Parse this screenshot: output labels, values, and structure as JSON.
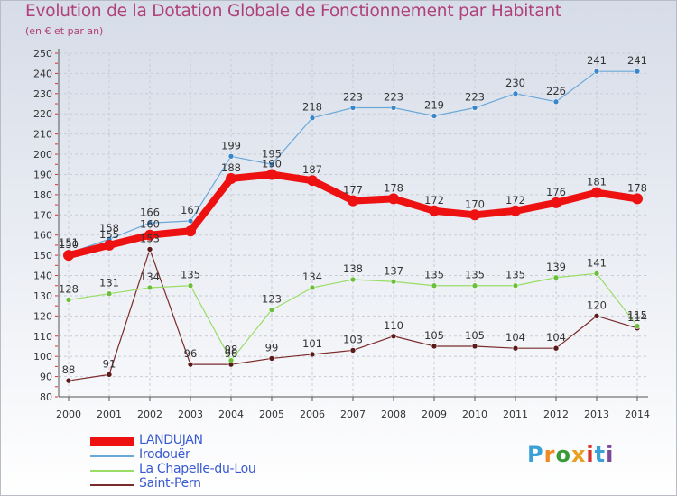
{
  "header": {
    "title": "Evolution de la Dotation Globale de Fonctionnement par Habitant",
    "subtitle": "(en € et par an)"
  },
  "brand": {
    "letters": [
      "P",
      "r",
      "o",
      "x",
      "i",
      "t",
      "i"
    ],
    "colors": [
      "#39a0d8",
      "#f08a24",
      "#3a9a3a",
      "#e8a020",
      "#d8302a",
      "#39a0d8",
      "#7a4a9a"
    ]
  },
  "chart_data": {
    "type": "line",
    "title": "Evolution de la Dotation Globale de Fonctionnement par Habitant",
    "subtitle": "(en € et par an)",
    "xlabel": "",
    "ylabel": "",
    "ylim": [
      80,
      250
    ],
    "ytick_step": 10,
    "x": [
      "2000",
      "2001",
      "2002",
      "2003",
      "2004",
      "2005",
      "2006",
      "2007",
      "2008",
      "2009",
      "2010",
      "2011",
      "2012",
      "2013",
      "2014"
    ],
    "legend_position": "bottom-left",
    "series": [
      {
        "name": "LANDUJAN",
        "color": "#ee1111",
        "label_color": "#333333",
        "line_width": 8,
        "marker_r": 6,
        "values": [
          150,
          155,
          160,
          162,
          188,
          190,
          187,
          177,
          178,
          172,
          170,
          172,
          176,
          181,
          178
        ],
        "labels": [
          "150",
          "155",
          "160",
          "",
          "188",
          "190",
          "187",
          "177",
          "178",
          "172",
          "170",
          "172",
          "176",
          "181",
          "178"
        ]
      },
      {
        "name": "Irodouër",
        "color": "#6aa8d8",
        "marker_color": "#3a86c8",
        "label_color": "#333333",
        "line_width": 1.2,
        "marker_r": 3,
        "values": [
          151,
          158,
          166,
          167,
          199,
          195,
          218,
          223,
          223,
          219,
          223,
          230,
          226,
          241,
          241
        ],
        "labels": [
          "151",
          "158",
          "166",
          "167",
          "199",
          "195",
          "218",
          "223",
          "223",
          "219",
          "223",
          "230",
          "226",
          "241",
          "241"
        ]
      },
      {
        "name": "La Chapelle-du-Lou",
        "color": "#99dd66",
        "marker_color": "#6cbf3c",
        "label_color": "#333333",
        "line_width": 1.2,
        "marker_r": 3,
        "values": [
          128,
          131,
          134,
          135,
          98,
          123,
          134,
          138,
          137,
          135,
          135,
          135,
          139,
          141,
          115
        ],
        "labels": [
          "128",
          "131",
          "134",
          "135",
          "98",
          "123",
          "134",
          "138",
          "137",
          "135",
          "135",
          "135",
          "139",
          "141",
          "115"
        ]
      },
      {
        "name": "Saint-Pern",
        "color": "#7a2a2a",
        "marker_color": "#5a1a1a",
        "label_color": "#333333",
        "line_width": 1.2,
        "marker_r": 3,
        "values": [
          88,
          91,
          153,
          96,
          96,
          99,
          101,
          103,
          110,
          105,
          105,
          104,
          104,
          120,
          114
        ],
        "labels": [
          "88",
          "91",
          "153",
          "96",
          "96",
          "99",
          "101",
          "103",
          "110",
          "105",
          "105",
          "104",
          "104",
          "120",
          "114"
        ]
      }
    ]
  }
}
